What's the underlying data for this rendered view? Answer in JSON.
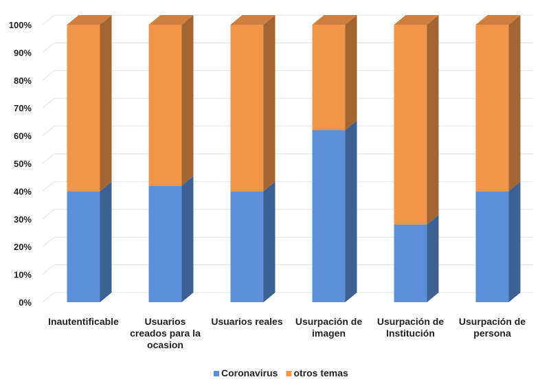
{
  "chart_data": {
    "type": "bar",
    "stacked": true,
    "percent": true,
    "three_d": true,
    "categories": [
      [
        "Inautentificable"
      ],
      [
        "Usuarios",
        "creados para la",
        "ocasion"
      ],
      [
        "Usuarios reales"
      ],
      [
        "Usurpación de",
        "imagen"
      ],
      [
        "Usurpación de",
        "Institución"
      ],
      [
        "Usurpación de",
        "persona"
      ]
    ],
    "series": [
      {
        "name": "Coronavirus",
        "color": "#5b8fd9",
        "values": [
          40,
          42,
          40,
          62,
          28,
          40
        ]
      },
      {
        "name": "otros temas",
        "color": "#f0954a",
        "values": [
          60,
          58,
          60,
          38,
          72,
          60
        ]
      }
    ],
    "yticks": [
      "0%",
      "10%",
      "20%",
      "30%",
      "40%",
      "50%",
      "60%",
      "70%",
      "80%",
      "90%",
      "100%"
    ],
    "ylim": [
      0,
      100
    ],
    "grid": true,
    "legend": "bottom-center",
    "title": "",
    "xlabel": "",
    "ylabel": ""
  }
}
